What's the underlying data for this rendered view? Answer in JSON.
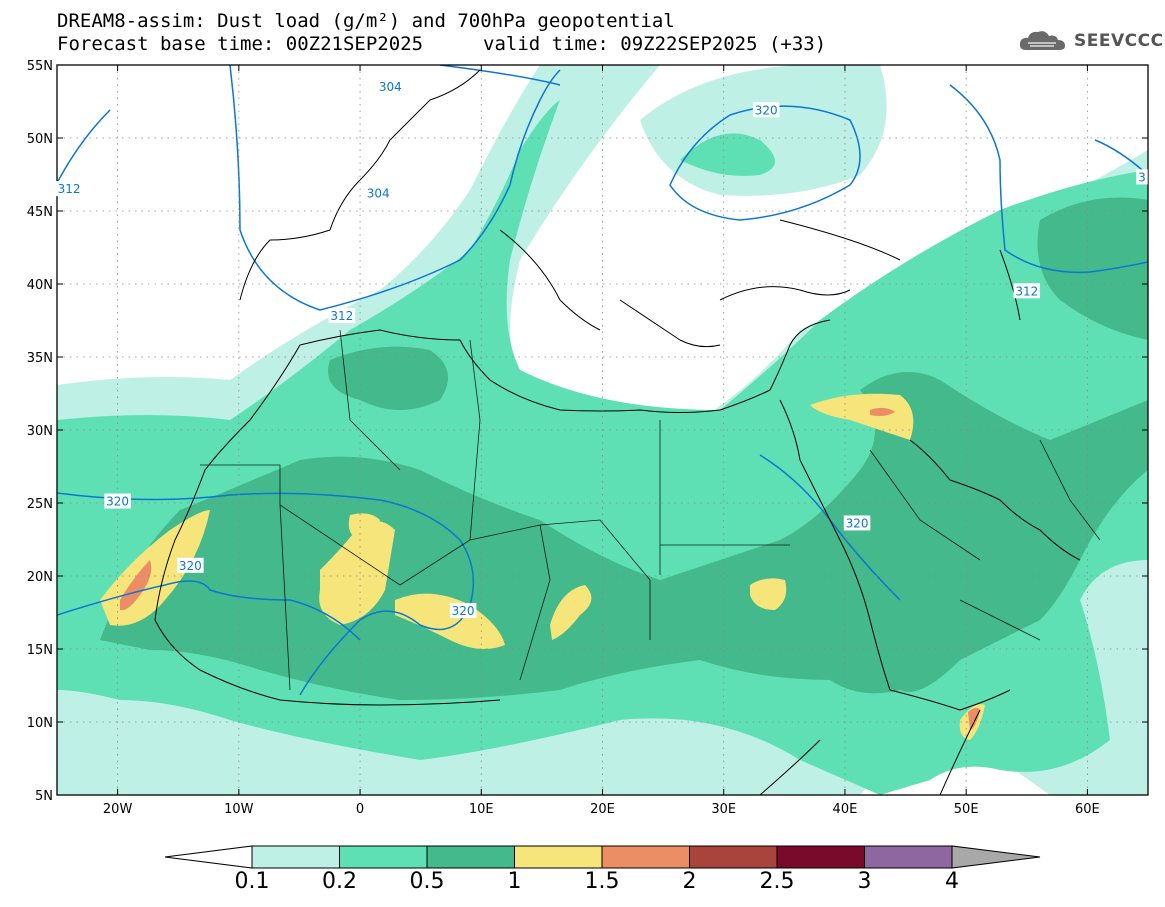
{
  "title": {
    "line1": "DREAM8-assim: Dust load (g/m²) and 700hPa geopotential",
    "base_time": "Forecast base time: 00Z21SEP2025",
    "valid_time": "valid time: 09Z22SEP2025 (+33)"
  },
  "logo": {
    "icon": "cloud-icon",
    "text": "SEEVCCC"
  },
  "map": {
    "lon_range": [
      -25,
      65
    ],
    "lat_range": [
      5,
      55
    ],
    "lat_ticks": [
      {
        "value": 55,
        "label": "55N"
      },
      {
        "value": 50,
        "label": "50N"
      },
      {
        "value": 45,
        "label": "45N"
      },
      {
        "value": 40,
        "label": "40N"
      },
      {
        "value": 35,
        "label": "35N"
      },
      {
        "value": 30,
        "label": "30N"
      },
      {
        "value": 25,
        "label": "25N"
      },
      {
        "value": 20,
        "label": "20N"
      },
      {
        "value": 15,
        "label": "15N"
      },
      {
        "value": 10,
        "label": "10N"
      },
      {
        "value": 5,
        "label": "5N"
      }
    ],
    "lon_ticks": [
      {
        "value": -20,
        "label": "20W"
      },
      {
        "value": -10,
        "label": "10W"
      },
      {
        "value": 0,
        "label": "0"
      },
      {
        "value": 10,
        "label": "10E"
      },
      {
        "value": 20,
        "label": "20E"
      },
      {
        "value": 30,
        "label": "30E"
      },
      {
        "value": 40,
        "label": "40E"
      },
      {
        "value": 50,
        "label": "50E"
      },
      {
        "value": 60,
        "label": "60E"
      }
    ],
    "grid": true,
    "contour_labels": [
      {
        "text": "304",
        "lon": 2.5,
        "lat": 53.5
      },
      {
        "text": "304",
        "lon": 1.5,
        "lat": 46.2
      },
      {
        "text": "312",
        "lon": -1.5,
        "lat": 37.8
      },
      {
        "text": "312",
        "lon": -24,
        "lat": 46.5
      },
      {
        "text": "320",
        "lon": 33.5,
        "lat": 51.9
      },
      {
        "text": "312",
        "lon": 55,
        "lat": 39.5
      },
      {
        "text": "320",
        "lon": -20,
        "lat": 25.1
      },
      {
        "text": "320",
        "lon": -14,
        "lat": 20.7
      },
      {
        "text": "320",
        "lon": 8.5,
        "lat": 17.6
      },
      {
        "text": "320",
        "lon": 41,
        "lat": 23.6
      },
      {
        "text": "3",
        "lon": 64.5,
        "lat": 47.3
      }
    ]
  },
  "colorbar": {
    "levels": [
      "0.1",
      "0.2",
      "0.5",
      "1",
      "1.5",
      "2",
      "2.5",
      "3",
      "4"
    ],
    "colors": [
      "#bff0e6",
      "#5fe0b4",
      "#44b98c",
      "#f5e57a",
      "#eb8e66",
      "#a8443c",
      "#7a0a2c",
      "#8e66a0"
    ],
    "min_color": "#ffffff",
    "max_color": "#a8a8a8"
  },
  "colors": {
    "coast": "#000000",
    "contour": "#0b77d0"
  }
}
